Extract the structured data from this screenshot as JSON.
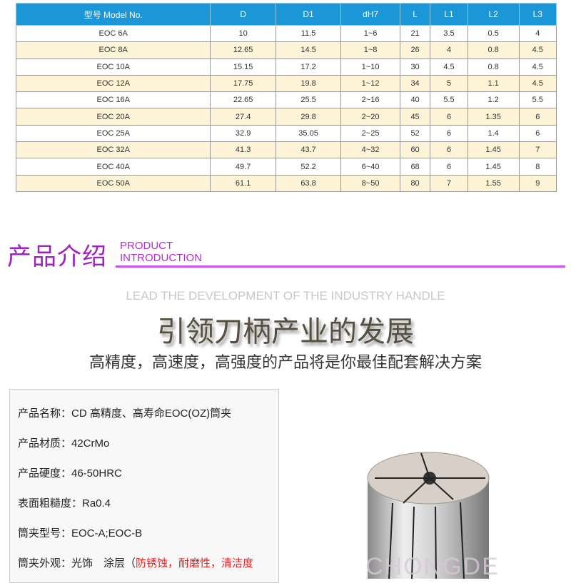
{
  "table": {
    "headers": [
      "型号 Model No.",
      "D",
      "D1",
      "dH7",
      "L",
      "L1",
      "L2",
      "L3"
    ],
    "rows": [
      [
        "EOC 6A",
        "10",
        "11.5",
        "1~6",
        "21",
        "3.5",
        "0.5",
        "4"
      ],
      [
        "EOC 8A",
        "12.65",
        "14.5",
        "1~8",
        "26",
        "4",
        "0.8",
        "4.5"
      ],
      [
        "EOC 10A",
        "15.15",
        "17.2",
        "1~10",
        "30",
        "4.5",
        "0.8",
        "4.5"
      ],
      [
        "EOC 12A",
        "17.75",
        "19.8",
        "1~12",
        "34",
        "5",
        "1.1",
        "4.5"
      ],
      [
        "EOC 16A",
        "22.65",
        "25.5",
        "2~16",
        "40",
        "5.5",
        "1.2",
        "5.5"
      ],
      [
        "EOC 20A",
        "27.4",
        "29.8",
        "2~20",
        "45",
        "6",
        "1.35",
        "6"
      ],
      [
        "EOC 25A",
        "32.9",
        "35.05",
        "2~25",
        "52",
        "6",
        "1.4",
        "6"
      ],
      [
        "EOC 32A",
        "41.3",
        "43.7",
        "4~32",
        "60",
        "6",
        "1.45",
        "7"
      ],
      [
        "EOC 40A",
        "49.7",
        "52.2",
        "6~40",
        "68",
        "6",
        "1.45",
        "8"
      ],
      [
        "EOC 50A",
        "61.1",
        "63.8",
        "8~50",
        "80",
        "7",
        "1.55",
        "9"
      ]
    ]
  },
  "section": {
    "title_cn": "产品介绍",
    "title_en_1": "PRODUCT",
    "title_en_2": "INTRODUCTION",
    "accent": "#a020c0"
  },
  "lead": "LEAD THE DEVELOPMENT OF THE INDUSTRY HANDLE",
  "slogan": "引领刀柄产业的发展",
  "subtitle": "高精度，高速度，高强度的产品将是你最佳配套解决方案",
  "info": {
    "name": "产品名称：CD 高精度、高寿命EOC(OZ)筒夹",
    "material": "产品材质：42CrMo",
    "hardness": "产品硬度：46-50HRC",
    "roughness": "表面粗糙度：Ra0.4",
    "model": "筒夹型号：EOC-A;EOC-B",
    "appearance": "筒夹外观：光饰　涂层（",
    "appearance_red": "防锈蚀，耐磨性，清洁度"
  },
  "watermark": "CHONGDE"
}
